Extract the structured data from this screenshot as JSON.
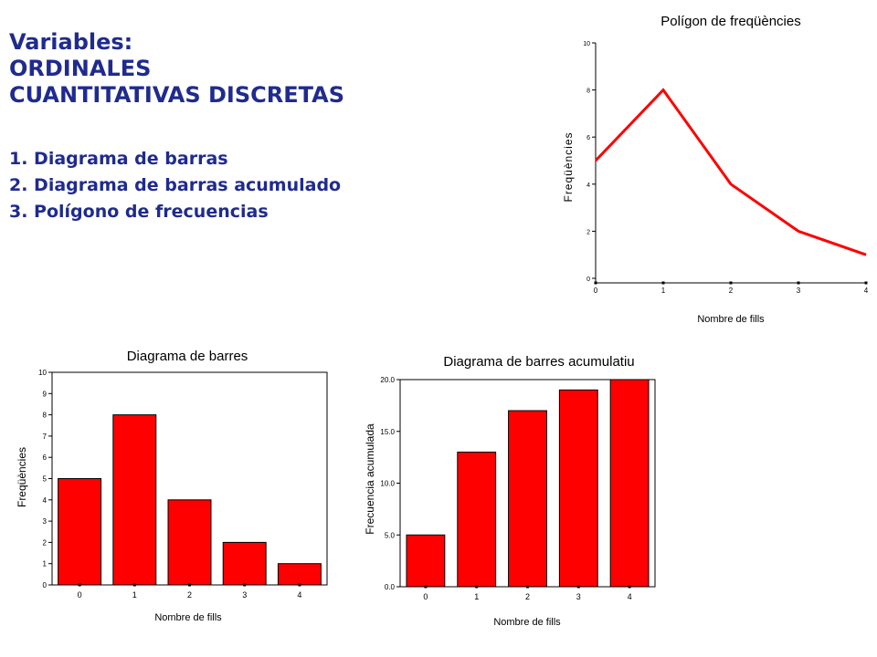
{
  "heading": {
    "line1": "Variables:",
    "line2": "ORDINALES",
    "line3": "CUANTITATIVAS DISCRETAS"
  },
  "list": [
    "1. Diagrama de barras",
    "2. Diagrama de barras acumulado",
    "3. Polígono de frecuencias"
  ],
  "colors": {
    "heading": "#1f2b8e",
    "series": "#ff0000",
    "axis": "#000000"
  },
  "chart_data": [
    {
      "type": "line",
      "title": "Polígon de freqüències",
      "xlabel": "Nombre de fills",
      "ylabel": "Freqüències",
      "x": [
        0,
        1,
        2,
        3,
        4
      ],
      "y": [
        5,
        8,
        4,
        2,
        1
      ],
      "xlim": [
        0,
        4
      ],
      "ylim": [
        0,
        10
      ],
      "yticks": [
        0,
        2,
        4,
        6,
        8,
        10
      ],
      "ytick_labels": [
        "0",
        "2",
        "4",
        "6",
        "8",
        "10"
      ],
      "xtick_labels": [
        "0",
        "1",
        "2",
        "3",
        "4"
      ]
    },
    {
      "type": "bar",
      "title": "Diagrama de barres",
      "xlabel": "Nombre de fills",
      "ylabel": "Freqüències",
      "categories": [
        "0",
        "1",
        "2",
        "3",
        "4"
      ],
      "values": [
        5,
        8,
        4,
        2,
        1
      ],
      "ylim": [
        0,
        10
      ],
      "yticks": [
        0,
        1,
        2,
        3,
        4,
        5,
        6,
        7,
        8,
        9,
        10
      ],
      "ytick_labels": [
        "0",
        "1",
        "2",
        "3",
        "4",
        "5",
        "6",
        "7",
        "8",
        "9",
        "10"
      ]
    },
    {
      "type": "bar",
      "title": "Diagrama de barres acumulatiu",
      "xlabel": "Nombre de fills",
      "ylabel": "Frecuencia acumulada",
      "categories": [
        "0",
        "1",
        "2",
        "3",
        "4"
      ],
      "values": [
        5,
        13,
        17,
        19,
        20
      ],
      "ylim": [
        0,
        20
      ],
      "yticks": [
        0,
        5,
        10,
        15,
        20
      ],
      "ytick_labels": [
        "0.0",
        "5.0",
        "10.0",
        "15.0",
        "20.0"
      ]
    }
  ]
}
